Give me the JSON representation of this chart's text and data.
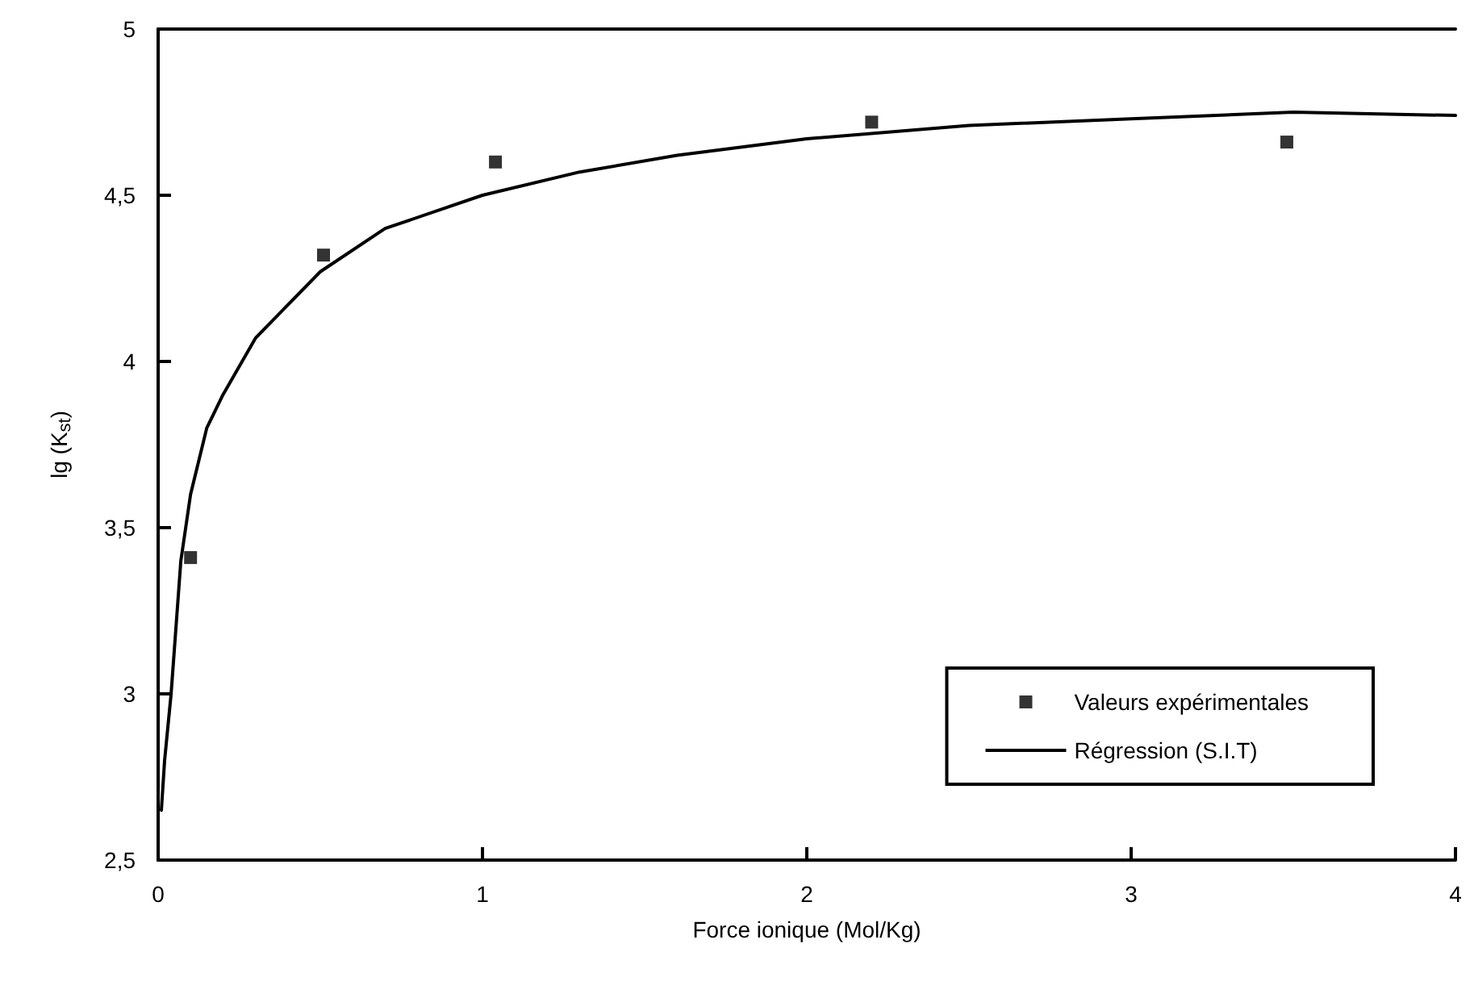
{
  "chart_data": {
    "type": "scatter",
    "xlabel": "Force ionique (Mol/Kg)",
    "ylabel": "lg (K$_{st}$)",
    "xlim": [
      0,
      4
    ],
    "xticks": [
      0,
      1,
      2,
      3,
      4
    ],
    "ylim": [
      2.5,
      5
    ],
    "yticks": [
      {
        "value": 2.5,
        "label": "2,5"
      },
      3,
      {
        "value": 3.5,
        "label": "3,5"
      },
      4,
      {
        "value": 4.5,
        "label": "4,5"
      },
      5
    ],
    "grid": false,
    "legend": "bottom right",
    "series": [
      {
        "name": "Valeurs expérimentales",
        "marker": "square",
        "color": "#000000",
        "x": [
          0.1,
          0.51,
          1.04,
          2.2,
          3.48
        ],
        "values": [
          3.41,
          4.32,
          4.6,
          4.72,
          4.66
        ]
      },
      {
        "name": "Régression (S.I.T)",
        "type": "line",
        "marker": "none",
        "line_style": "solid",
        "color": "#000000",
        "x": [
          0.01,
          0.02,
          0.04,
          0.07,
          0.1,
          0.15,
          0.2,
          0.3,
          0.4,
          0.5,
          0.7,
          1.0,
          1.3,
          1.6,
          2.0,
          2.5,
          3.0,
          3.5,
          4.0
        ],
        "values": [
          2.65,
          2.8,
          3.0,
          3.4,
          3.6,
          3.8,
          3.9,
          4.07,
          4.17,
          4.27,
          4.4,
          4.5,
          4.57,
          4.62,
          4.67,
          4.71,
          4.73,
          4.75,
          4.74
        ]
      }
    ]
  }
}
